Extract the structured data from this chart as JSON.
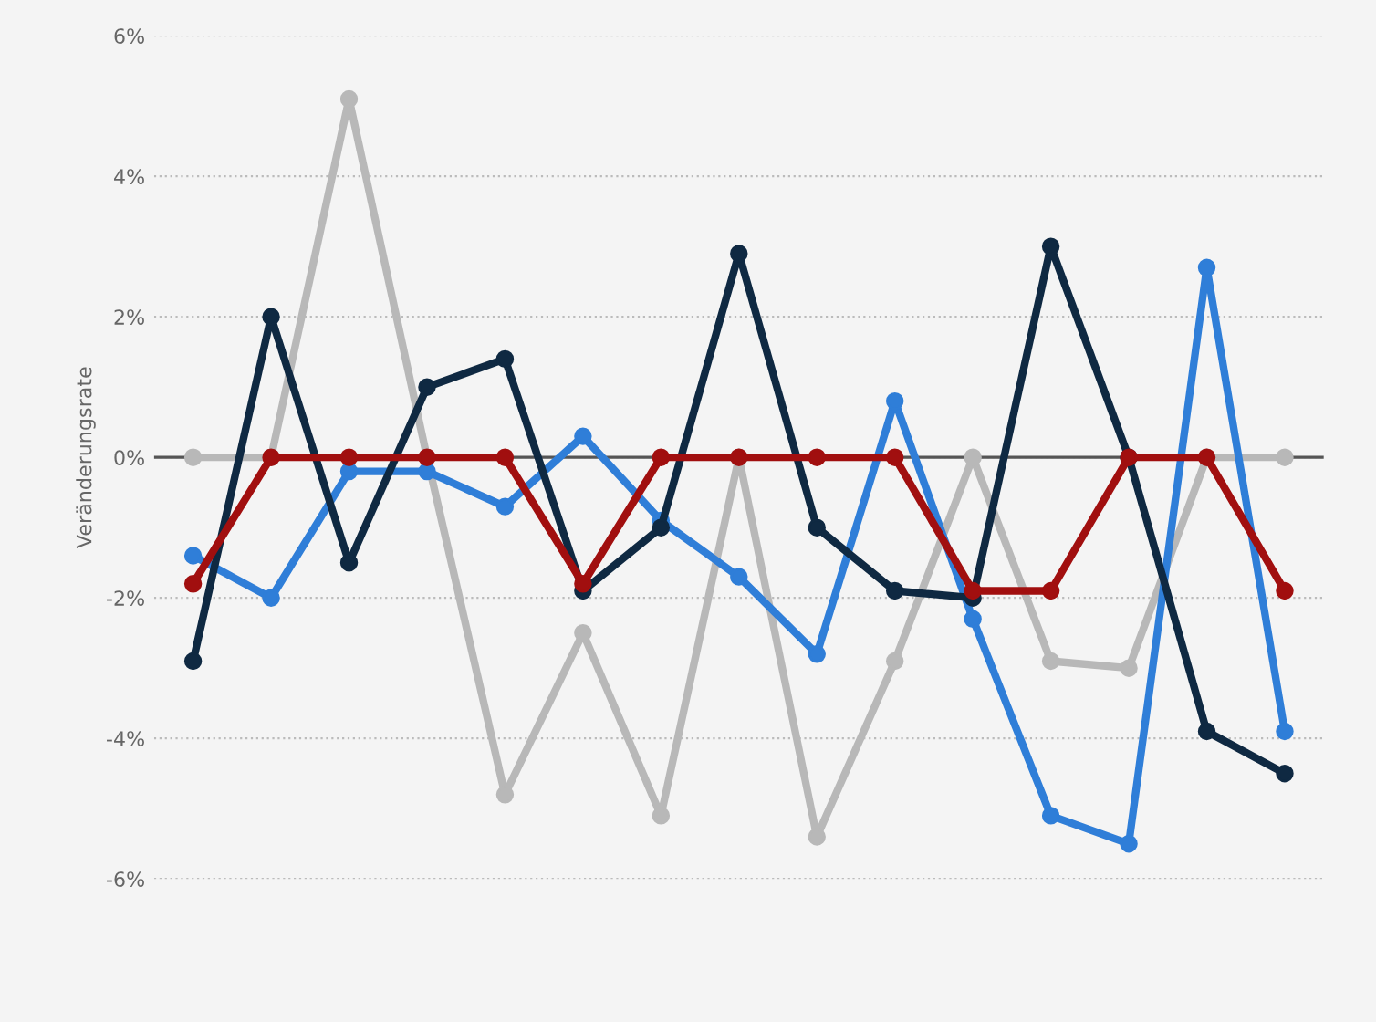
{
  "chart_data": {
    "type": "line",
    "ylabel": "Veränderungsrate",
    "categories": [
      null,
      null,
      null,
      null,
      null,
      null,
      null,
      null,
      null,
      null,
      null,
      null,
      null,
      null,
      null
    ],
    "series": [
      {
        "color": "#b8b8b8",
        "values": [
          0,
          0,
          5.1,
          0,
          -4.8,
          -2.5,
          -5.1,
          0,
          -5.4,
          -2.9,
          0,
          -2.9,
          -3.0,
          0,
          0
        ]
      },
      {
        "color": "#2f7ed8",
        "values": [
          -1.4,
          -2.0,
          -0.2,
          -0.2,
          -0.7,
          0.3,
          -0.9,
          -1.7,
          -2.8,
          0.8,
          -2.3,
          -5.1,
          -5.5,
          2.7,
          -3.9
        ]
      },
      {
        "color": "#0f2942",
        "values": [
          -2.9,
          2.0,
          -1.5,
          1.0,
          1.4,
          -1.9,
          -1.0,
          2.9,
          -1.0,
          -1.9,
          -2.0,
          3.0,
          0,
          -3.9,
          -4.5
        ]
      },
      {
        "color": "#a10f0f",
        "values": [
          -1.8,
          0,
          0,
          0,
          0,
          -1.8,
          0,
          0,
          0,
          0,
          -1.9,
          -1.9,
          0,
          0,
          -1.9
        ]
      }
    ],
    "ylim": [
      -6,
      6
    ],
    "yticks": [
      {
        "value": -6,
        "label": "-6%"
      },
      {
        "value": -4,
        "label": "-4%"
      },
      {
        "value": -2,
        "label": "-2%"
      },
      {
        "value": 0,
        "label": "0%"
      },
      {
        "value": 2,
        "label": "2%"
      },
      {
        "value": 4,
        "label": "4%"
      },
      {
        "value": 6,
        "label": "6%"
      }
    ],
    "ref_lines": [
      {
        "axis": "y",
        "value": 0,
        "color": "#555555"
      }
    ],
    "grid": "y",
    "marker": "circle",
    "line_style": "solid"
  }
}
